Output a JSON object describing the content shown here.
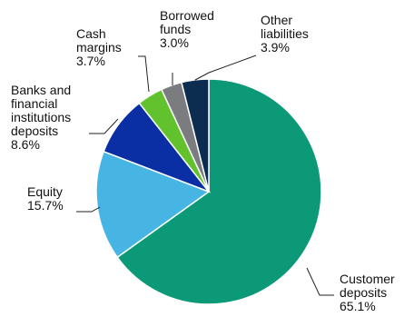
{
  "chart_data": {
    "type": "pie",
    "title": "",
    "start": "top",
    "direction": "clockwise",
    "slices": [
      {
        "label_lines": [
          "Customer",
          "deposits"
        ],
        "value": 65.1,
        "value_label": "65.1%",
        "color": "#0c9977"
      },
      {
        "label_lines": [
          "Equity"
        ],
        "value": 15.7,
        "value_label": "15.7%",
        "color": "#47b5e4"
      },
      {
        "label_lines": [
          "Banks and",
          "financial",
          "institutions",
          "deposits"
        ],
        "value": 8.6,
        "value_label": "8.6%",
        "color": "#0a2fa5"
      },
      {
        "label_lines": [
          "Cash",
          "margins"
        ],
        "value": 3.7,
        "value_label": "3.7%",
        "color": "#62c22d"
      },
      {
        "label_lines": [
          "Borrowed",
          "funds"
        ],
        "value": 3.0,
        "value_label": "3.0%",
        "color": "#7a7c80"
      },
      {
        "label_lines": [
          "Other",
          "liabilities"
        ],
        "value": 3.9,
        "value_label": "3.9%",
        "color": "#0c2d50"
      }
    ]
  }
}
